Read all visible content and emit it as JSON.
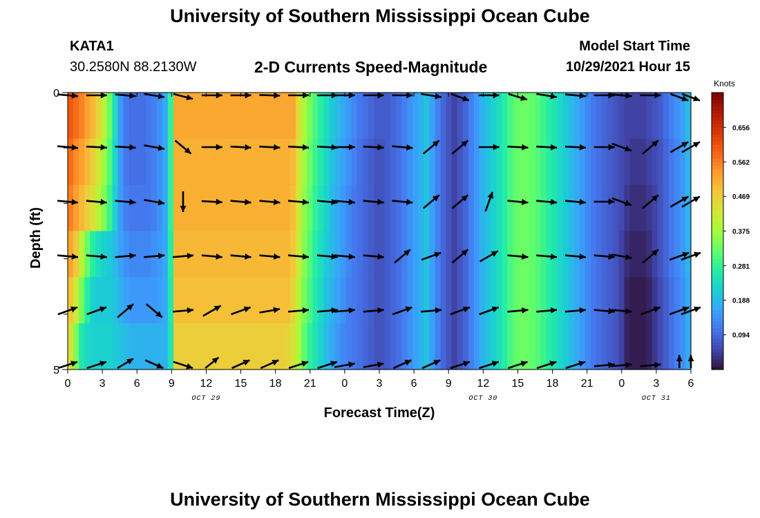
{
  "header": {
    "title": "University of Southern Mississippi Ocean Cube",
    "station": "KATA1",
    "coords": "30.2580N  88.2130W",
    "subtitle": "2-D Currents Speed-Magnitude",
    "model_start_label": "Model Start Time",
    "model_start_value": "10/29/2021 Hour 15"
  },
  "footer": {
    "title": "University of Southern Mississippi Ocean Cube"
  },
  "chart_data": {
    "type": "heatmap",
    "xlabel": "Forecast Time(Z)",
    "ylabel": "Depth (ft)",
    "x_tick_labels": [
      "0",
      "3",
      "6",
      "9",
      "12",
      "15",
      "18",
      "21",
      "0",
      "3",
      "6",
      "9",
      "12",
      "15",
      "18",
      "21",
      "0",
      "3",
      "6"
    ],
    "date_labels": [
      {
        "label": "OCT 29",
        "at_tick": 4
      },
      {
        "label": "OCT 30",
        "at_tick": 12
      },
      {
        "label": "OCT 31",
        "at_tick": 17
      }
    ],
    "y_tick_labels": [
      "0",
      "5"
    ],
    "depth_range": [
      0,
      5
    ],
    "colorbar": {
      "title": "Knots",
      "ticks": [
        0.094,
        0.188,
        0.281,
        0.375,
        0.469,
        0.562,
        0.656
      ],
      "range": [
        0,
        0.75
      ],
      "colors": [
        "#30123b",
        "#4145ab",
        "#4675ed",
        "#39a2fc",
        "#1bcfd4",
        "#24eca6",
        "#61fc6c",
        "#a4fc3b",
        "#d1e834",
        "#f3c63a",
        "#fe9b2d",
        "#f36315",
        "#d93806",
        "#b11901",
        "#7a0402"
      ]
    },
    "speed_by_depth_row": [
      [
        0.6,
        0.58,
        0.56,
        0.53,
        0.5,
        0.46,
        0.4,
        0.33,
        0.24,
        0.15,
        0.11,
        0.1,
        0.1,
        0.1,
        0.11,
        0.12,
        0.14,
        0.17,
        0.28,
        0.52,
        0.52,
        0.52,
        0.52,
        0.52,
        0.52,
        0.52,
        0.52,
        0.52,
        0.52,
        0.52,
        0.52,
        0.52,
        0.52,
        0.52,
        0.52,
        0.52,
        0.52,
        0.52,
        0.52,
        0.52,
        0.52,
        0.45,
        0.38,
        0.34,
        0.3,
        0.27,
        0.24,
        0.21,
        0.19,
        0.17,
        0.15,
        0.13,
        0.11,
        0.1,
        0.09,
        0.08,
        0.08,
        0.08,
        0.09,
        0.1,
        0.12,
        0.14,
        0.16,
        0.18,
        0.2,
        0.16,
        0.12,
        0.09,
        0.07,
        0.05,
        0.07,
        0.09,
        0.12,
        0.15,
        0.18,
        0.2,
        0.22,
        0.24,
        0.27,
        0.3,
        0.32,
        0.33,
        0.33,
        0.32,
        0.31,
        0.29,
        0.27,
        0.25,
        0.23,
        0.21,
        0.19,
        0.17,
        0.15,
        0.13,
        0.11,
        0.1,
        0.09,
        0.08,
        0.07,
        0.06,
        0.05,
        0.05,
        0.05,
        0.05,
        0.06,
        0.07,
        0.08,
        0.1,
        0.12,
        0.14,
        0.16,
        0.19
      ],
      [
        0.58,
        0.55,
        0.53,
        0.5,
        0.47,
        0.43,
        0.37,
        0.31,
        0.23,
        0.15,
        0.11,
        0.1,
        0.1,
        0.1,
        0.11,
        0.12,
        0.14,
        0.17,
        0.28,
        0.51,
        0.51,
        0.51,
        0.51,
        0.51,
        0.51,
        0.51,
        0.51,
        0.51,
        0.51,
        0.51,
        0.51,
        0.51,
        0.51,
        0.51,
        0.51,
        0.51,
        0.51,
        0.51,
        0.51,
        0.51,
        0.5,
        0.44,
        0.37,
        0.33,
        0.29,
        0.26,
        0.23,
        0.2,
        0.18,
        0.16,
        0.14,
        0.12,
        0.1,
        0.09,
        0.08,
        0.07,
        0.07,
        0.08,
        0.09,
        0.1,
        0.12,
        0.14,
        0.16,
        0.18,
        0.2,
        0.16,
        0.12,
        0.09,
        0.07,
        0.05,
        0.07,
        0.09,
        0.12,
        0.15,
        0.18,
        0.2,
        0.22,
        0.24,
        0.27,
        0.3,
        0.32,
        0.33,
        0.33,
        0.32,
        0.31,
        0.29,
        0.27,
        0.25,
        0.23,
        0.21,
        0.19,
        0.17,
        0.15,
        0.13,
        0.11,
        0.1,
        0.09,
        0.08,
        0.07,
        0.06,
        0.05,
        0.04,
        0.04,
        0.04,
        0.05,
        0.06,
        0.07,
        0.09,
        0.11,
        0.13,
        0.15,
        0.18
      ],
      [
        0.56,
        0.53,
        0.5,
        0.47,
        0.44,
        0.4,
        0.35,
        0.29,
        0.22,
        0.15,
        0.12,
        0.11,
        0.11,
        0.11,
        0.11,
        0.12,
        0.14,
        0.17,
        0.28,
        0.51,
        0.51,
        0.51,
        0.51,
        0.51,
        0.51,
        0.51,
        0.51,
        0.51,
        0.51,
        0.51,
        0.51,
        0.51,
        0.51,
        0.51,
        0.51,
        0.51,
        0.51,
        0.51,
        0.51,
        0.51,
        0.49,
        0.43,
        0.36,
        0.32,
        0.28,
        0.25,
        0.22,
        0.19,
        0.17,
        0.15,
        0.13,
        0.11,
        0.1,
        0.09,
        0.08,
        0.07,
        0.07,
        0.08,
        0.09,
        0.1,
        0.12,
        0.14,
        0.16,
        0.18,
        0.2,
        0.16,
        0.12,
        0.09,
        0.07,
        0.05,
        0.07,
        0.09,
        0.12,
        0.15,
        0.18,
        0.2,
        0.22,
        0.24,
        0.27,
        0.3,
        0.32,
        0.33,
        0.33,
        0.32,
        0.31,
        0.29,
        0.27,
        0.25,
        0.23,
        0.21,
        0.19,
        0.17,
        0.15,
        0.13,
        0.11,
        0.1,
        0.09,
        0.08,
        0.07,
        0.06,
        0.04,
        0.03,
        0.03,
        0.03,
        0.04,
        0.05,
        0.07,
        0.09,
        0.11,
        0.13,
        0.15,
        0.18
      ],
      [
        0.52,
        0.48,
        0.4,
        0.33,
        0.27,
        0.24,
        0.22,
        0.21,
        0.19,
        0.16,
        0.14,
        0.13,
        0.13,
        0.13,
        0.13,
        0.14,
        0.15,
        0.17,
        0.27,
        0.5,
        0.5,
        0.5,
        0.5,
        0.5,
        0.5,
        0.5,
        0.5,
        0.5,
        0.5,
        0.5,
        0.5,
        0.5,
        0.5,
        0.5,
        0.5,
        0.5,
        0.5,
        0.5,
        0.5,
        0.5,
        0.48,
        0.42,
        0.35,
        0.31,
        0.27,
        0.24,
        0.21,
        0.19,
        0.17,
        0.15,
        0.13,
        0.11,
        0.1,
        0.09,
        0.08,
        0.07,
        0.07,
        0.08,
        0.09,
        0.1,
        0.12,
        0.14,
        0.16,
        0.18,
        0.2,
        0.16,
        0.12,
        0.09,
        0.07,
        0.05,
        0.07,
        0.09,
        0.12,
        0.15,
        0.18,
        0.2,
        0.22,
        0.24,
        0.27,
        0.3,
        0.32,
        0.33,
        0.33,
        0.32,
        0.31,
        0.29,
        0.27,
        0.25,
        0.23,
        0.21,
        0.19,
        0.17,
        0.15,
        0.13,
        0.11,
        0.1,
        0.09,
        0.08,
        0.07,
        0.05,
        0.03,
        0.02,
        0.02,
        0.02,
        0.03,
        0.05,
        0.07,
        0.09,
        0.11,
        0.13,
        0.15,
        0.18
      ],
      [
        0.48,
        0.42,
        0.34,
        0.27,
        0.22,
        0.21,
        0.21,
        0.21,
        0.2,
        0.18,
        0.16,
        0.15,
        0.15,
        0.15,
        0.15,
        0.15,
        0.16,
        0.17,
        0.26,
        0.49,
        0.49,
        0.49,
        0.49,
        0.49,
        0.49,
        0.49,
        0.49,
        0.49,
        0.49,
        0.49,
        0.49,
        0.49,
        0.49,
        0.49,
        0.49,
        0.49,
        0.49,
        0.49,
        0.49,
        0.49,
        0.46,
        0.4,
        0.34,
        0.3,
        0.26,
        0.23,
        0.2,
        0.18,
        0.16,
        0.14,
        0.12,
        0.11,
        0.1,
        0.09,
        0.08,
        0.07,
        0.07,
        0.08,
        0.09,
        0.1,
        0.12,
        0.14,
        0.16,
        0.18,
        0.2,
        0.16,
        0.12,
        0.09,
        0.07,
        0.05,
        0.07,
        0.09,
        0.12,
        0.15,
        0.18,
        0.2,
        0.22,
        0.24,
        0.27,
        0.3,
        0.32,
        0.33,
        0.33,
        0.32,
        0.31,
        0.29,
        0.27,
        0.25,
        0.23,
        0.21,
        0.19,
        0.17,
        0.15,
        0.13,
        0.11,
        0.1,
        0.09,
        0.08,
        0.07,
        0.05,
        0.02,
        0.01,
        0.01,
        0.01,
        0.02,
        0.04,
        0.06,
        0.08,
        0.1,
        0.12,
        0.14,
        0.17
      ],
      [
        0.44,
        0.34,
        0.26,
        0.23,
        0.22,
        0.22,
        0.22,
        0.22,
        0.21,
        0.2,
        0.19,
        0.18,
        0.18,
        0.18,
        0.18,
        0.18,
        0.18,
        0.18,
        0.25,
        0.47,
        0.47,
        0.47,
        0.47,
        0.47,
        0.47,
        0.47,
        0.47,
        0.47,
        0.47,
        0.47,
        0.47,
        0.47,
        0.47,
        0.47,
        0.47,
        0.47,
        0.47,
        0.47,
        0.47,
        0.46,
        0.44,
        0.38,
        0.32,
        0.28,
        0.25,
        0.22,
        0.19,
        0.17,
        0.15,
        0.13,
        0.12,
        0.11,
        0.1,
        0.09,
        0.08,
        0.07,
        0.07,
        0.08,
        0.09,
        0.1,
        0.12,
        0.14,
        0.16,
        0.18,
        0.2,
        0.16,
        0.12,
        0.09,
        0.07,
        0.05,
        0.07,
        0.09,
        0.12,
        0.15,
        0.18,
        0.2,
        0.22,
        0.24,
        0.27,
        0.3,
        0.32,
        0.33,
        0.33,
        0.32,
        0.31,
        0.29,
        0.27,
        0.25,
        0.23,
        0.21,
        0.19,
        0.17,
        0.15,
        0.13,
        0.11,
        0.1,
        0.09,
        0.08,
        0.07,
        0.05,
        0.02,
        0.01,
        0.01,
        0.01,
        0.02,
        0.04,
        0.06,
        0.08,
        0.1,
        0.12,
        0.14,
        0.17
      ]
    ],
    "vector_columns_forecast_hour": [
      0,
      2.5,
      5,
      7.5,
      10,
      12.5,
      15,
      17.5,
      20,
      22.5,
      24,
      26.5,
      29,
      31.5,
      34,
      36.5,
      39,
      41.5,
      44,
      46.5,
      48,
      50.5,
      53,
      54
    ],
    "vectors_angle_deg": [
      [
        5,
        0,
        5,
        10,
        20,
        0,
        0,
        2,
        0,
        0,
        0,
        0,
        0,
        10,
        30,
        0,
        25,
        10,
        5,
        0,
        5,
        0,
        30,
        30
      ],
      [
        5,
        3,
        3,
        10,
        40,
        0,
        3,
        3,
        3,
        3,
        0,
        3,
        5,
        -40,
        -40,
        0,
        3,
        3,
        3,
        0,
        20,
        -40,
        -30,
        -30
      ],
      [
        5,
        5,
        5,
        10,
        90,
        3,
        5,
        5,
        5,
        5,
        5,
        5,
        5,
        -40,
        -40,
        -70,
        5,
        5,
        5,
        0,
        20,
        -40,
        -30,
        -30
      ],
      [
        5,
        5,
        -5,
        -5,
        -5,
        5,
        5,
        5,
        5,
        5,
        5,
        5,
        -40,
        -20,
        -40,
        -30,
        5,
        5,
        5,
        5,
        10,
        -40,
        -20,
        -20
      ],
      [
        -20,
        -20,
        -40,
        40,
        -5,
        -30,
        -20,
        -10,
        -5,
        -5,
        -5,
        -5,
        -20,
        -5,
        -20,
        -20,
        -5,
        -5,
        -5,
        5,
        5,
        -20,
        -20,
        -20
      ],
      [
        -20,
        -20,
        -40,
        30,
        20,
        -50,
        -30,
        -30,
        -20,
        -20,
        -10,
        -10,
        -30,
        -30,
        -20,
        -20,
        -20,
        -20,
        -20,
        -5,
        -5,
        -5,
        -90,
        -90
      ]
    ]
  }
}
